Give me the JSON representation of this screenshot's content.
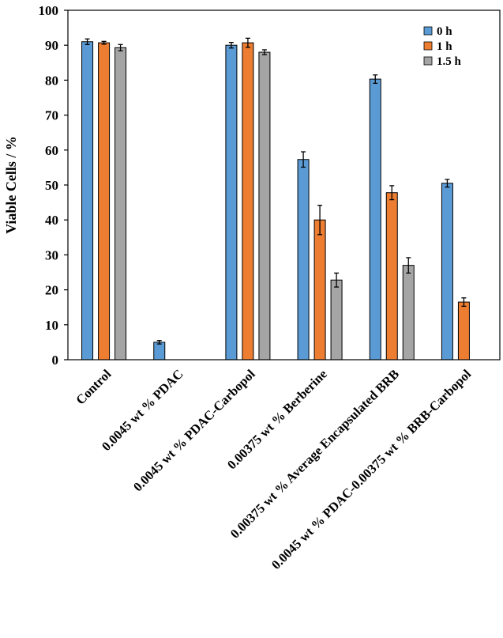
{
  "chart_data": {
    "type": "bar",
    "title": "",
    "xlabel": "",
    "ylabel": "Viable Cells / %",
    "ylim": [
      0,
      100
    ],
    "yticks": [
      0,
      10,
      20,
      30,
      40,
      50,
      60,
      70,
      80,
      90,
      100
    ],
    "grid": false,
    "legend_position": "top-right",
    "categories": [
      "Control",
      "0.0045 wt  % PDAC",
      "0.0045 wt  % PDAC-Carbopol",
      "0.00375 wt  % Berberine",
      "0.00375 wt % Average Encapsulated BRB",
      "0.0045 wt % PDAC-0.00375 wt % BRB-Carbopol"
    ],
    "series": [
      {
        "name": "0 h",
        "color": "#5B9BD5",
        "values": [
          91,
          5,
          90,
          57.3,
          80.3,
          50.5
        ],
        "errors": [
          0.8,
          0.5,
          0.8,
          2.2,
          1.2,
          1.1
        ]
      },
      {
        "name": "1 h",
        "color": "#ED7D31",
        "values": [
          90.7,
          null,
          90.7,
          40,
          47.8,
          16.5
        ],
        "errors": [
          0.4,
          null,
          1.3,
          4.2,
          2.0,
          1.2
        ]
      },
      {
        "name": "1.5 h",
        "color": "#A5A5A5",
        "values": [
          89.3,
          null,
          88,
          22.8,
          27,
          null
        ],
        "errors": [
          0.9,
          null,
          0.7,
          2.0,
          2.2,
          null
        ]
      }
    ]
  }
}
